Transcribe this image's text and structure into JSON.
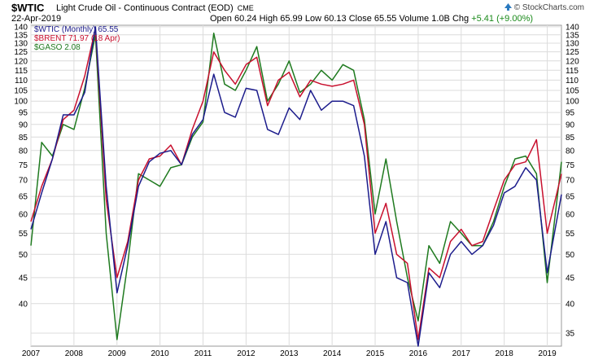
{
  "header": {
    "symbol": "$WTIC",
    "instrument": "Light Crude Oil - Continuous Contract (EOD)",
    "exchange": "CME",
    "date": "22-Apr-2019",
    "open_label": "Open",
    "open": "60.24",
    "high_label": "High",
    "high": "65.99",
    "low_label": "Low",
    "low": "60.13",
    "close_label": "Close",
    "close": "65.55",
    "volume_label": "Volume",
    "volume": "1.0B",
    "chg_label": "Chg",
    "chg": "+5.41 (+9.00%)",
    "watermark": "© StockCharts.com",
    "watermark_icon": "up-arrow-icon"
  },
  "legend": {
    "wtic": "$WTIC (Monthly) 65.55",
    "brent": "$BRENT 71.97 (18 Apr)",
    "gaso": "$GASO 2.08"
  },
  "colors": {
    "wtic": "#1c1c8c",
    "brent": "#c8102e",
    "gaso": "#1f7a1f",
    "grid": "#dcdcdc",
    "frame": "#999999"
  },
  "chart_data": {
    "type": "line",
    "title": "$WTIC Light Crude Oil - Continuous Contract (EOD)",
    "xlabel": "",
    "ylabel": "",
    "y_scale": "log",
    "ylim": [
      33,
      141
    ],
    "xlim": [
      2007.0,
      2019.33
    ],
    "yticks": [
      35,
      40,
      45,
      50,
      55,
      60,
      65,
      70,
      75,
      80,
      85,
      90,
      95,
      100,
      105,
      110,
      115,
      120,
      125,
      130,
      135,
      140
    ],
    "yticks_left": [
      40,
      45,
      50,
      55,
      60,
      65,
      70,
      75,
      80,
      85,
      90,
      95,
      100,
      105,
      110,
      115,
      120,
      125,
      130,
      135,
      140
    ],
    "yticks_right": [
      35,
      40,
      45,
      50,
      55,
      60,
      65,
      70,
      75,
      80,
      85,
      90,
      95,
      100,
      105,
      110,
      115,
      120,
      125,
      130,
      135,
      140
    ],
    "xticks": [
      "2007",
      "2008",
      "2009",
      "2010",
      "2011",
      "2012",
      "2013",
      "2014",
      "2015",
      "2016",
      "2017",
      "2018",
      "2019"
    ],
    "grid": true,
    "legend_position": "top-left",
    "series": [
      {
        "name": "$WTIC (Monthly) 65.55",
        "color_key": "wtic",
        "x": [
          2007.0,
          2007.25,
          2007.5,
          2007.75,
          2008.0,
          2008.25,
          2008.5,
          2008.75,
          2009.0,
          2009.25,
          2009.5,
          2009.75,
          2010.0,
          2010.25,
          2010.5,
          2010.75,
          2011.0,
          2011.25,
          2011.5,
          2011.75,
          2012.0,
          2012.25,
          2012.5,
          2012.75,
          2013.0,
          2013.25,
          2013.5,
          2013.75,
          2014.0,
          2014.25,
          2014.5,
          2014.75,
          2015.0,
          2015.25,
          2015.5,
          2015.75,
          2016.0,
          2016.25,
          2016.5,
          2016.75,
          2017.0,
          2017.25,
          2017.5,
          2017.75,
          2018.0,
          2018.25,
          2018.5,
          2018.75,
          2019.0,
          2019.33
        ],
        "values": [
          56,
          66,
          77,
          94,
          94,
          104,
          140,
          68,
          42,
          52,
          68,
          76,
          79,
          80,
          75,
          86,
          92,
          113,
          95,
          93,
          106,
          105,
          88,
          86,
          97,
          92,
          105,
          96,
          100,
          100,
          98,
          78,
          50,
          58,
          45,
          44,
          33,
          46,
          43,
          50,
          53,
          50,
          52,
          57,
          66,
          68,
          74,
          70,
          46,
          65.55
        ]
      },
      {
        "name": "$BRENT 71.97 (18 Apr)",
        "color_key": "brent",
        "x": [
          2007.0,
          2007.25,
          2007.5,
          2007.75,
          2008.0,
          2008.25,
          2008.5,
          2008.75,
          2009.0,
          2009.25,
          2009.5,
          2009.75,
          2010.0,
          2010.25,
          2010.5,
          2010.75,
          2011.0,
          2011.25,
          2011.5,
          2011.75,
          2012.0,
          2012.25,
          2012.5,
          2012.75,
          2013.0,
          2013.25,
          2013.5,
          2013.75,
          2014.0,
          2014.25,
          2014.5,
          2014.75,
          2015.0,
          2015.25,
          2015.5,
          2015.75,
          2016.0,
          2016.25,
          2016.5,
          2016.75,
          2017.0,
          2017.25,
          2017.5,
          2017.75,
          2018.0,
          2018.25,
          2018.5,
          2018.75,
          2019.0,
          2019.33
        ],
        "values": [
          58,
          68,
          77,
          92,
          96,
          112,
          139,
          64,
          45,
          53,
          70,
          77,
          78,
          82,
          75,
          88,
          100,
          125,
          115,
          108,
          118,
          122,
          98,
          110,
          114,
          102,
          110,
          108,
          107,
          108,
          110,
          90,
          55,
          63,
          50,
          48,
          34,
          47,
          45,
          53,
          56,
          52,
          53,
          61,
          70,
          75,
          76,
          84,
          55,
          71.97
        ]
      },
      {
        "name": "$GASO 2.08",
        "color_key": "gaso",
        "x": [
          2007.0,
          2007.25,
          2007.5,
          2007.75,
          2008.0,
          2008.25,
          2008.5,
          2008.75,
          2009.0,
          2009.25,
          2009.5,
          2009.75,
          2010.0,
          2010.25,
          2010.5,
          2010.75,
          2011.0,
          2011.25,
          2011.5,
          2011.75,
          2012.0,
          2012.25,
          2012.5,
          2012.75,
          2013.0,
          2013.25,
          2013.5,
          2013.75,
          2014.0,
          2014.25,
          2014.5,
          2014.75,
          2015.0,
          2015.25,
          2015.5,
          2015.75,
          2016.0,
          2016.25,
          2016.5,
          2016.75,
          2017.0,
          2017.25,
          2017.5,
          2017.75,
          2018.0,
          2018.25,
          2018.5,
          2018.75,
          2019.0,
          2019.33
        ],
        "values": [
          52,
          83,
          78,
          90,
          88,
          106,
          135,
          55,
          34,
          48,
          72,
          70,
          68,
          74,
          75,
          85,
          91,
          136,
          108,
          105,
          115,
          128,
          100,
          108,
          120,
          104,
          108,
          115,
          110,
          118,
          115,
          92,
          60,
          77,
          58,
          45,
          37,
          52,
          48,
          58,
          55,
          52,
          52,
          58,
          68,
          77,
          78,
          72,
          44,
          76
        ]
      }
    ]
  }
}
